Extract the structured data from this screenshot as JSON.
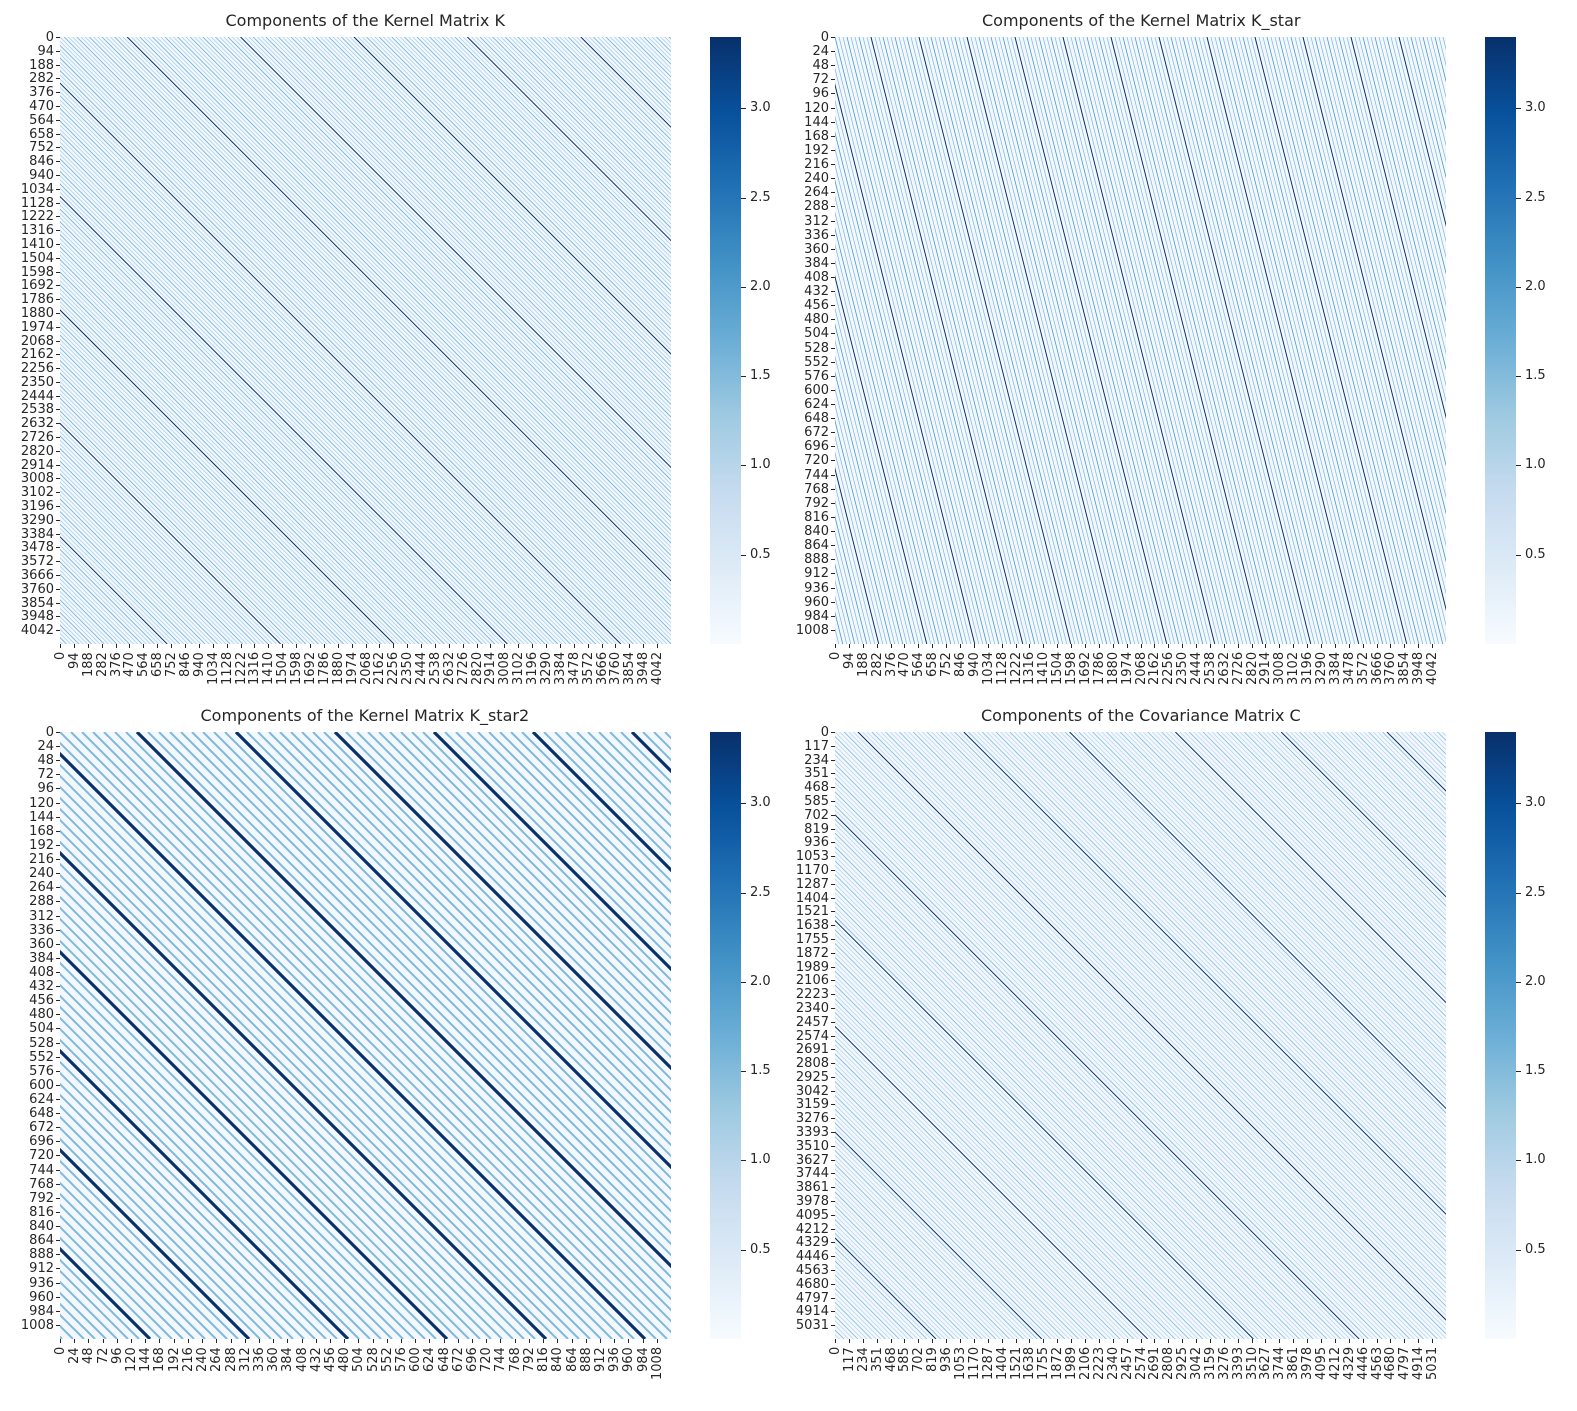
{
  "colormap": {
    "name": "Blues",
    "stops": [
      "#f7fbff",
      "#deebf7",
      "#c6dbef",
      "#9ecae1",
      "#6baed6",
      "#4292c6",
      "#2171b5",
      "#08519c",
      "#08306b"
    ]
  },
  "chart_data": [
    {
      "type": "heatmap",
      "title": "Components of the Kernel Matrix K",
      "y_tick_labels": [
        "0",
        "94",
        "188",
        "282",
        "376",
        "470",
        "564",
        "658",
        "752",
        "846",
        "940",
        "1034",
        "1128",
        "1222",
        "1316",
        "1410",
        "1504",
        "1598",
        "1692",
        "1786",
        "1880",
        "1974",
        "2068",
        "2162",
        "2256",
        "2350",
        "2444",
        "2538",
        "2632",
        "2726",
        "2820",
        "2914",
        "3008",
        "3102",
        "3196",
        "3290",
        "3384",
        "3478",
        "3572",
        "3666",
        "3760",
        "3854",
        "3948",
        "4042"
      ],
      "x_tick_labels": [
        "0",
        "94",
        "188",
        "282",
        "376",
        "470",
        "564",
        "658",
        "752",
        "846",
        "940",
        "1034",
        "1128",
        "1222",
        "1316",
        "1410",
        "1504",
        "1598",
        "1692",
        "1786",
        "1880",
        "1974",
        "2068",
        "2162",
        "2256",
        "2350",
        "2444",
        "2538",
        "2632",
        "2726",
        "2820",
        "2914",
        "3008",
        "3102",
        "3196",
        "3290",
        "3384",
        "3478",
        "3572",
        "3666",
        "3760",
        "3854",
        "3948",
        "4042"
      ],
      "colorbar_ticks": [
        "0.5",
        "1.0",
        "1.5",
        "2.0",
        "2.5",
        "3.0"
      ],
      "value_range": [
        0.0,
        3.4
      ]
    },
    {
      "type": "heatmap",
      "title": "Components of the Kernel Matrix K_star",
      "y_tick_labels": [
        "0",
        "24",
        "48",
        "72",
        "96",
        "120",
        "144",
        "168",
        "192",
        "216",
        "240",
        "264",
        "288",
        "312",
        "336",
        "360",
        "384",
        "408",
        "432",
        "456",
        "480",
        "504",
        "528",
        "552",
        "576",
        "600",
        "624",
        "648",
        "672",
        "696",
        "720",
        "744",
        "768",
        "792",
        "816",
        "840",
        "864",
        "888",
        "912",
        "936",
        "960",
        "984",
        "1008"
      ],
      "x_tick_labels": [
        "0",
        "94",
        "188",
        "282",
        "376",
        "470",
        "564",
        "658",
        "752",
        "846",
        "940",
        "1034",
        "1128",
        "1222",
        "1316",
        "1410",
        "1504",
        "1598",
        "1692",
        "1786",
        "1880",
        "1974",
        "2068",
        "2162",
        "2256",
        "2350",
        "2444",
        "2538",
        "2632",
        "2726",
        "2820",
        "2914",
        "3008",
        "3102",
        "3196",
        "3290",
        "3384",
        "3478",
        "3572",
        "3666",
        "3760",
        "3854",
        "3948",
        "4042"
      ],
      "colorbar_ticks": [
        "0.5",
        "1.0",
        "1.5",
        "2.0",
        "2.5",
        "3.0"
      ],
      "value_range": [
        0.0,
        3.4
      ]
    },
    {
      "type": "heatmap",
      "title": "Components of the Kernel Matrix K_star2",
      "y_tick_labels": [
        "0",
        "24",
        "48",
        "72",
        "96",
        "120",
        "144",
        "168",
        "192",
        "216",
        "240",
        "264",
        "288",
        "312",
        "336",
        "360",
        "384",
        "408",
        "432",
        "456",
        "480",
        "504",
        "528",
        "552",
        "576",
        "600",
        "624",
        "648",
        "672",
        "696",
        "720",
        "744",
        "768",
        "792",
        "816",
        "840",
        "864",
        "888",
        "912",
        "936",
        "960",
        "984",
        "1008"
      ],
      "x_tick_labels": [
        "0",
        "24",
        "48",
        "72",
        "96",
        "120",
        "144",
        "168",
        "192",
        "216",
        "240",
        "264",
        "288",
        "312",
        "336",
        "360",
        "384",
        "408",
        "432",
        "456",
        "480",
        "504",
        "528",
        "552",
        "576",
        "600",
        "624",
        "648",
        "672",
        "696",
        "720",
        "744",
        "768",
        "792",
        "816",
        "840",
        "864",
        "888",
        "912",
        "936",
        "960",
        "984",
        "1008"
      ],
      "colorbar_ticks": [
        "0.5",
        "1.0",
        "1.5",
        "2.0",
        "2.5",
        "3.0"
      ],
      "value_range": [
        0.0,
        3.4
      ]
    },
    {
      "type": "heatmap",
      "title": "Components of the Covariance Matrix C",
      "y_tick_labels": [
        "0",
        "117",
        "234",
        "351",
        "468",
        "585",
        "702",
        "819",
        "936",
        "1053",
        "1170",
        "1287",
        "1404",
        "1521",
        "1638",
        "1755",
        "1872",
        "1989",
        "2106",
        "2223",
        "2340",
        "2457",
        "2574",
        "2691",
        "2808",
        "2925",
        "3042",
        "3159",
        "3276",
        "3393",
        "3510",
        "3627",
        "3744",
        "3861",
        "3978",
        "4095",
        "4212",
        "4329",
        "4446",
        "4563",
        "4680",
        "4797",
        "4914",
        "5031"
      ],
      "x_tick_labels": [
        "0",
        "117",
        "234",
        "351",
        "468",
        "585",
        "702",
        "819",
        "936",
        "1053",
        "1170",
        "1287",
        "1404",
        "1521",
        "1638",
        "1755",
        "1872",
        "1989",
        "2106",
        "2223",
        "2340",
        "2457",
        "2574",
        "2691",
        "2808",
        "2925",
        "3042",
        "3159",
        "3276",
        "3393",
        "3510",
        "3627",
        "3744",
        "3861",
        "3978",
        "4095",
        "4212",
        "4329",
        "4446",
        "4563",
        "4680",
        "4797",
        "4914",
        "5031"
      ],
      "colorbar_ticks": [
        "0.5",
        "1.0",
        "1.5",
        "2.0",
        "2.5",
        "3.0"
      ],
      "value_range": [
        0.0,
        3.4
      ]
    }
  ]
}
